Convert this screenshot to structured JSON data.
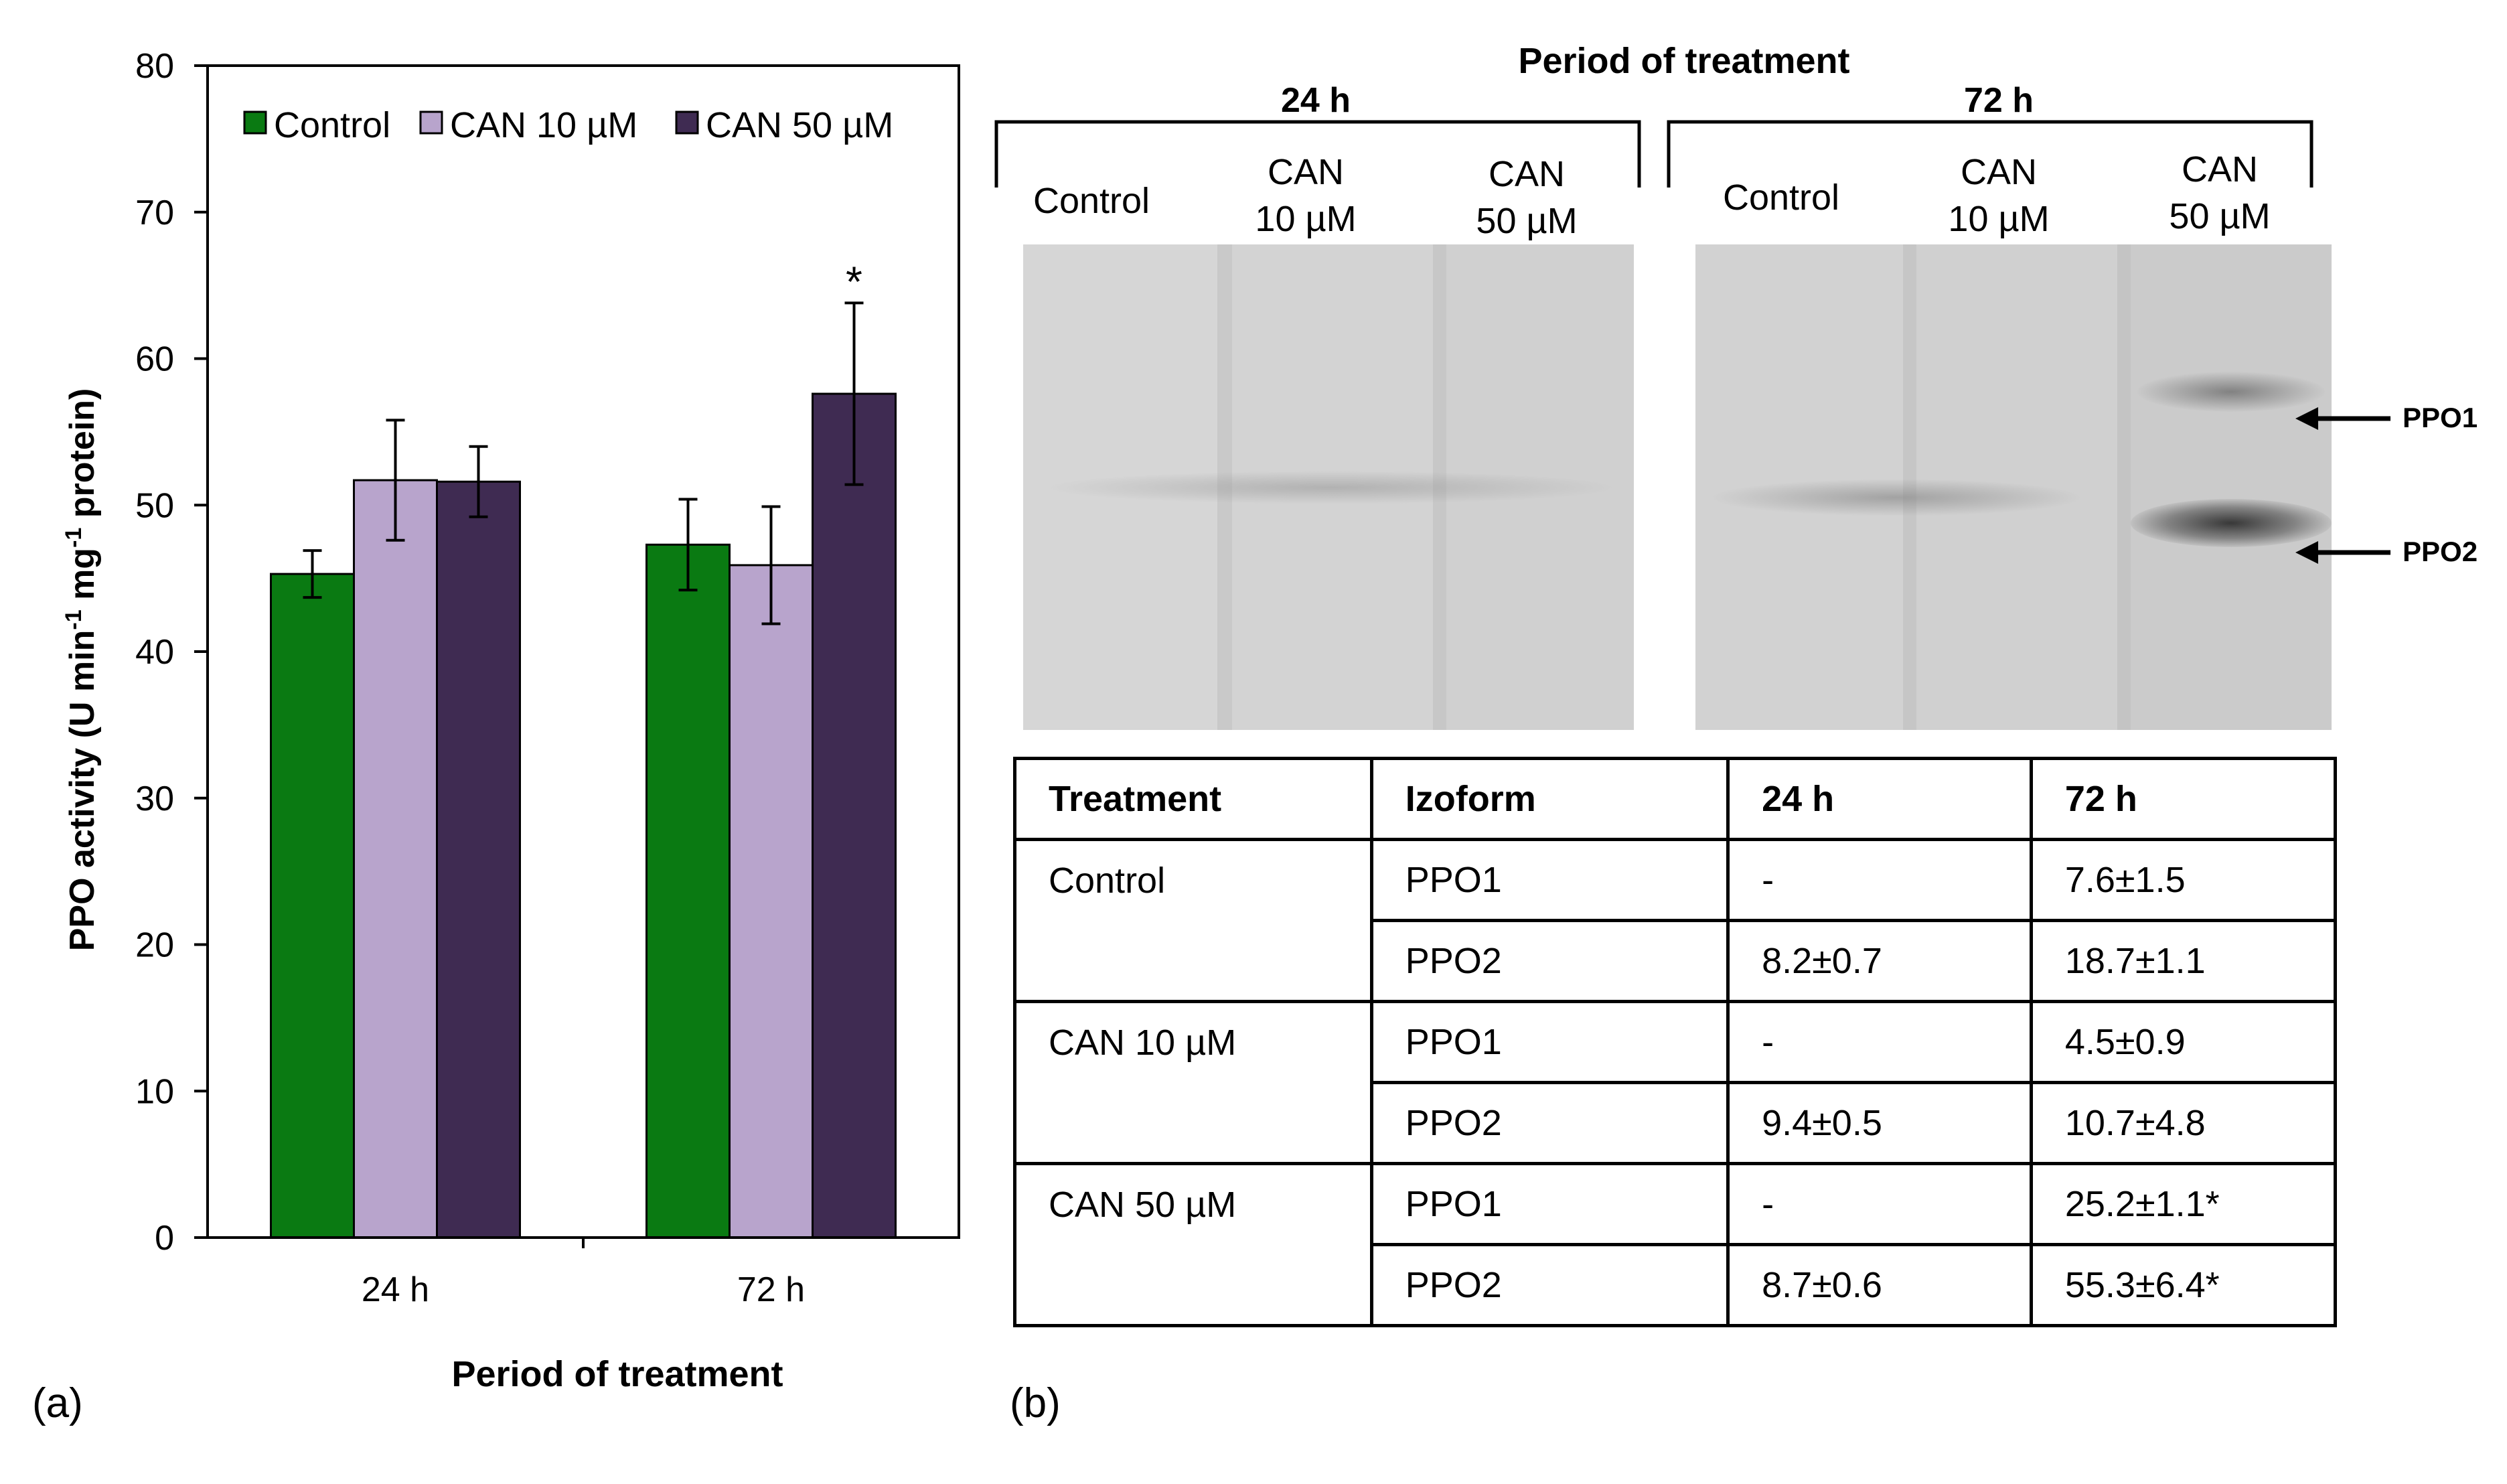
{
  "chart_data": {
    "type": "bar",
    "ylabel": "PPO activity (U min⁻¹ mg⁻¹ protein)",
    "xlabel": "Period of treatment",
    "ylim": [
      0,
      80
    ],
    "yticks": [
      0,
      10,
      20,
      30,
      40,
      50,
      60,
      70,
      80
    ],
    "categories": [
      "24 h",
      "72 h"
    ],
    "series": [
      {
        "name": "Control",
        "color": "#0a7a12",
        "values": [
          45.3,
          47.3
        ],
        "errors": [
          1.6,
          3.1
        ]
      },
      {
        "name": "CAN 10 µM",
        "color": "#b8a4cc",
        "values": [
          51.7,
          45.9
        ],
        "errors": [
          4.1,
          4.0
        ]
      },
      {
        "name": "CAN 50 µM",
        "color": "#3f2b52",
        "values": [
          51.6,
          57.6
        ],
        "errors": [
          2.4,
          6.2
        ]
      }
    ],
    "annotations": [
      {
        "series": 2,
        "category": 1,
        "text": "*"
      }
    ],
    "legend": "top"
  },
  "panel_a_label": "(a)",
  "panel_b_label": "(b)",
  "gel": {
    "title": "Period of treatment",
    "groups": [
      {
        "title": "24 h",
        "lanes": [
          "Control",
          "CAN\n10 µM",
          "CAN\n50 µM"
        ]
      },
      {
        "title": "72 h",
        "lanes": [
          "Control",
          "CAN\n10 µM",
          "CAN\n50 µM"
        ]
      }
    ],
    "bands": [
      "PPO1",
      "PPO2"
    ]
  },
  "table": {
    "headers": [
      "Treatment",
      "Izoform",
      "24 h",
      "72 h"
    ],
    "groups": [
      {
        "treatment": "Control",
        "rows": [
          [
            "PPO1",
            "-",
            "7.6±1.5"
          ],
          [
            "PPO2",
            "8.2±0.7",
            "18.7±1.1"
          ]
        ]
      },
      {
        "treatment": "CAN 10 µM",
        "rows": [
          [
            "PPO1",
            "-",
            "4.5±0.9"
          ],
          [
            "PPO2",
            "9.4±0.5",
            "10.7±4.8"
          ]
        ]
      },
      {
        "treatment": "CAN 50 µM",
        "rows": [
          [
            "PPO1",
            "-",
            "25.2±1.1*"
          ],
          [
            "PPO2",
            "8.7±0.6",
            "55.3±6.4*"
          ]
        ]
      }
    ]
  }
}
